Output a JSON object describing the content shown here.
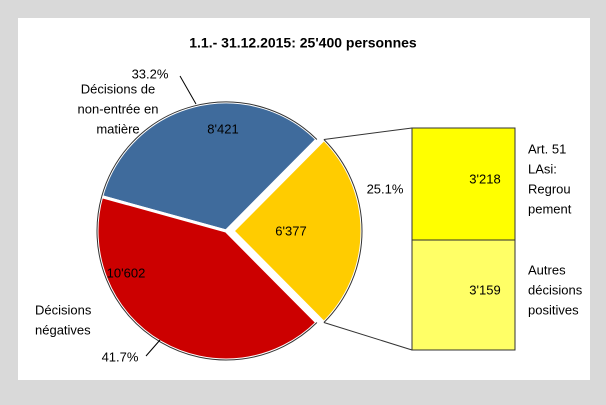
{
  "chart_data": {
    "type": "pie",
    "title": "1.1.- 31.12.2015: 25'400 personnes",
    "slices": [
      {
        "label_lines": [
          "Décisions de",
          "non-entrée en",
          "matière"
        ],
        "value": 8421,
        "value_label": "8'421",
        "percent": 33.2,
        "percent_label": "33.2%",
        "color": "#3f6b9c"
      },
      {
        "label_lines": [
          "Décisions",
          "négatives"
        ],
        "value": 10602,
        "value_label": "10'602",
        "percent": 41.7,
        "percent_label": "41.7%",
        "color": "#cc0000"
      },
      {
        "value": 6377,
        "value_label": "6'377",
        "percent": 25.1,
        "percent_label": "25.1%",
        "color": "#ffcc00"
      }
    ],
    "breakdown": [
      {
        "label_lines": [
          "Art. 51",
          "LAsi:",
          "Regrou",
          "pement"
        ],
        "value": 3218,
        "value_label": "3'218",
        "color": "#ffff00"
      },
      {
        "label_lines": [
          "Autres",
          "décisions",
          "positives"
        ],
        "value": 3159,
        "value_label": "3'159",
        "color": "#ffff66"
      }
    ]
  }
}
